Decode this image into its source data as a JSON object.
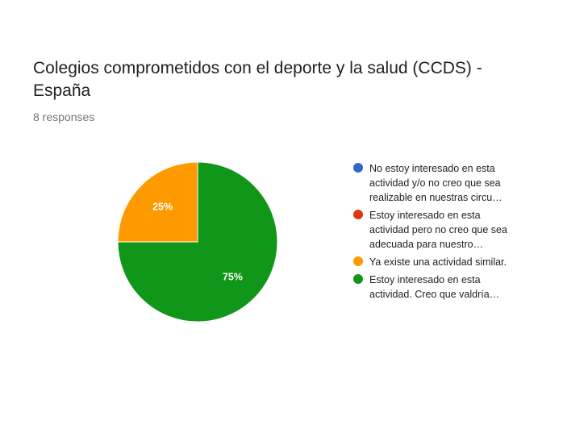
{
  "header": {
    "title": "Colegios comprometidos con el deporte y la salud (CCDS) - España",
    "responses": "8 responses"
  },
  "chart_data": {
    "type": "pie",
    "title": "Colegios comprometidos con el deporte y la salud (CCDS) - España",
    "legend_position": "right",
    "slices": [
      {
        "label": "No estoy interesado en esta actividad y/o no creo que sea realizable en nuestras circu…",
        "value": 0,
        "color": "#3366cc",
        "data_label": ""
      },
      {
        "label": "Estoy interesado en esta actividad pero no creo que sea adecuada para nuestro…",
        "value": 0,
        "color": "#dc3912",
        "data_label": ""
      },
      {
        "label": "Ya existe una actividad similar.",
        "value": 25,
        "color": "#ff9900",
        "data_label": "25%"
      },
      {
        "label": "Estoy interesado en esta actividad. Creo que valdría…",
        "value": 75,
        "color": "#109618",
        "data_label": "75%"
      }
    ]
  }
}
